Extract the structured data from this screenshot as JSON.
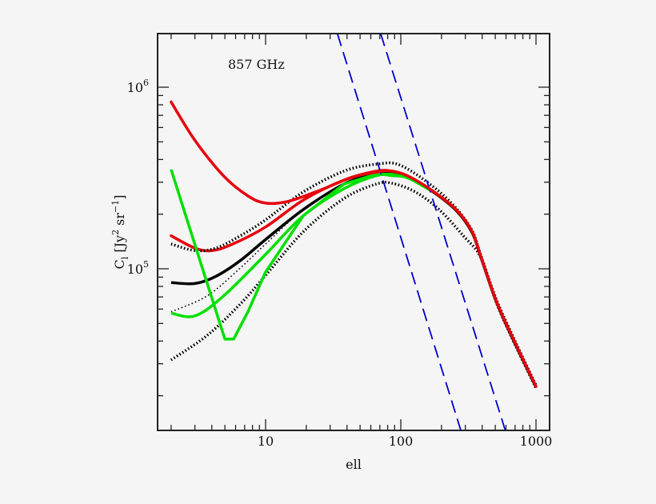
{
  "chart_data": {
    "type": "line",
    "title": "",
    "annotation": "857 GHz",
    "xlabel": "ell",
    "ylabel": "C_l [Jy^2 sr^-1]",
    "ylabel_parts": {
      "main": "C",
      "sub": "l",
      "unit_open": " [Jy",
      "sup1": "2",
      "unit_mid": " sr",
      "sup2": "−1",
      "unit_close": "]"
    },
    "xscale": "log",
    "yscale": "log",
    "xlim": [
      1.6,
      1300
    ],
    "ylim": [
      13000,
      2000000
    ],
    "x_ticks": [
      {
        "value": 10,
        "label": "10"
      },
      {
        "value": 100,
        "label": "100"
      },
      {
        "value": 1000,
        "label": "1000"
      }
    ],
    "y_ticks": [
      {
        "value": 100000,
        "base": "10",
        "exp": "5"
      },
      {
        "value": 1000000,
        "base": "10",
        "exp": "6"
      }
    ],
    "grid": false,
    "legend": null,
    "series": [
      {
        "name": "red-upper",
        "color": "#e8000b",
        "style": "solid",
        "width": 3.5,
        "x": [
          2,
          3,
          4.9,
          7.4,
          10,
          14.6,
          25,
          43,
          66,
          86,
          113,
          170,
          256,
          337,
          389,
          506,
          660,
          1000
        ],
        "y": [
          830000,
          510000,
          324000,
          252000,
          230000,
          235000,
          270000,
          318000,
          341000,
          345000,
          324000,
          270000,
          212000,
          160000,
          118000,
          67000,
          43000,
          22500
        ]
      },
      {
        "name": "red-lower",
        "color": "#e8000b",
        "style": "solid",
        "width": 3.5,
        "x": [
          2,
          3,
          4,
          5.6,
          10,
          19,
          38,
          66,
          86,
          113,
          170,
          256,
          337,
          389,
          506,
          660,
          1000
        ],
        "y": [
          152000,
          130000,
          126000,
          136000,
          170000,
          239000,
          308000,
          345000,
          345000,
          324000,
          270000,
          212000,
          160000,
          118000,
          67000,
          43000,
          22500
        ]
      },
      {
        "name": "black-solid",
        "color": "#000000",
        "style": "solid",
        "width": 3.5,
        "x": [
          2,
          3,
          4.3,
          6.5,
          10,
          19,
          38,
          66,
          86,
          113,
          170,
          256,
          337,
          389,
          506,
          660,
          1000
        ],
        "y": [
          84000,
          83000,
          91000,
          111000,
          145000,
          212000,
          293000,
          338000,
          341000,
          320000,
          268000,
          210000,
          158000,
          117000,
          66500,
          42500,
          22300
        ]
      },
      {
        "name": "black-dotted-upper",
        "color": "#000000",
        "style": "dotted-heavy",
        "width": 3.5,
        "x": [
          2,
          3,
          4.3,
          6.5,
          10,
          19,
          38,
          66,
          98,
          170,
          256,
          337,
          389,
          506,
          660,
          1000
        ],
        "y": [
          137000,
          126000,
          130000,
          152000,
          186000,
          265000,
          345000,
          377000,
          373000,
          287000,
          216000,
          162000,
          120000,
          68500,
          44000,
          22800
        ]
      },
      {
        "name": "black-dotted-fine",
        "color": "#000000",
        "style": "dotted-fine",
        "width": 1.6,
        "x": [
          2,
          3.7,
          6.5,
          10,
          19,
          38,
          66,
          86
        ],
        "y": [
          58000,
          71000,
          101000,
          137000,
          212000,
          290000,
          336000,
          340000
        ]
      },
      {
        "name": "black-dotted-lower",
        "color": "#000000",
        "style": "dotted-heavy",
        "width": 3.5,
        "x": [
          2,
          3.7,
          6.5,
          10,
          19,
          38,
          66,
          86,
          128,
          192,
          290,
          389,
          506,
          660,
          1000
        ],
        "y": [
          31500,
          43000,
          64000,
          92000,
          160000,
          244000,
          293000,
          296000,
          265000,
          212000,
          152000,
          116000,
          66000,
          42000,
          22000
        ]
      },
      {
        "name": "green-upper",
        "color": "#00e000",
        "style": "solid",
        "width": 3.5,
        "x": [
          2,
          5.0,
          5.8,
          7.4,
          10,
          19,
          38,
          66,
          86,
          113,
          170
        ],
        "y": [
          352000,
          41000,
          41000,
          58000,
          96000,
          196000,
          293000,
          332000,
          332000,
          318000,
          268000
        ]
      },
      {
        "name": "green-lower",
        "color": "#00e000",
        "style": "solid",
        "width": 3.5,
        "x": [
          2,
          3,
          4.9,
          10,
          19,
          38,
          66,
          86,
          113,
          170
        ],
        "y": [
          57000,
          55000,
          71000,
          120000,
          196000,
          276000,
          326000,
          326000,
          316000,
          268000
        ]
      },
      {
        "name": "blue-dashed-1",
        "color": "#0000cc",
        "style": "dashed",
        "width": 1.8,
        "x": [
          34,
          278
        ],
        "y": [
          1970000,
          12900
        ]
      },
      {
        "name": "blue-dashed-2",
        "color": "#0000cc",
        "style": "dashed",
        "width": 1.8,
        "x": [
          71,
          593
        ],
        "y": [
          1970000,
          12900
        ]
      }
    ]
  }
}
